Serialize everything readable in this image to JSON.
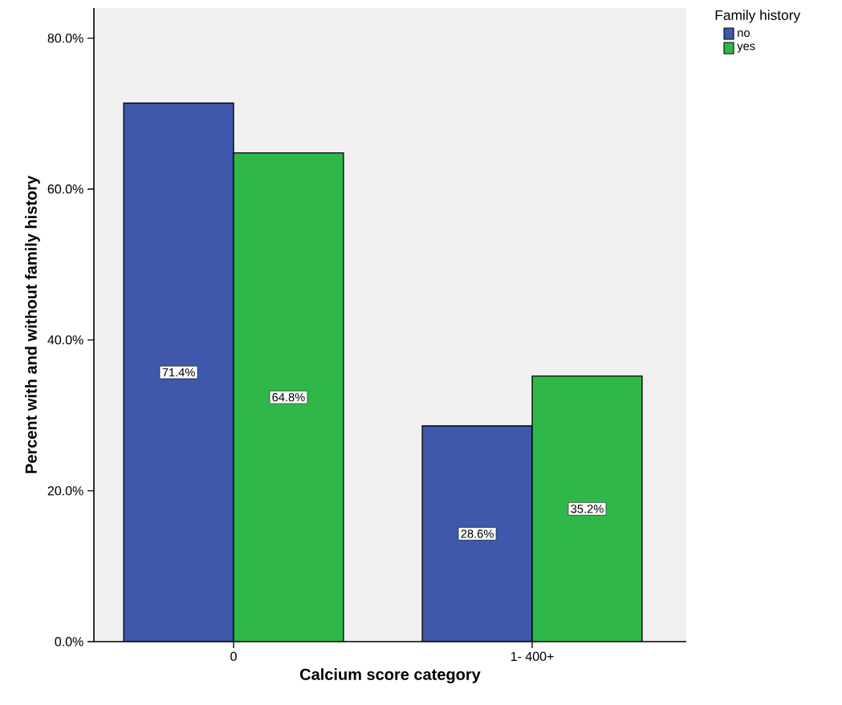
{
  "chart_data": {
    "type": "bar",
    "xlabel": "Calcium score category",
    "ylabel": "Percent with and without family history",
    "legend_title": "Family history",
    "categories": [
      "0",
      "1- 400+"
    ],
    "series": [
      {
        "name": "no",
        "color": "#3e58ac",
        "values": [
          71.4,
          28.6
        ],
        "value_labels": [
          "71.4%",
          "28.6%"
        ]
      },
      {
        "name": "yes",
        "color": "#2fb849",
        "values": [
          64.8,
          35.2
        ],
        "value_labels": [
          "64.8%",
          "35.2%"
        ]
      }
    ],
    "ylim": [
      0,
      84
    ],
    "yticks": [
      {
        "value": 0,
        "label": "0.0%"
      },
      {
        "value": 20,
        "label": "20.0%"
      },
      {
        "value": 40,
        "label": "40.0%"
      },
      {
        "value": 60,
        "label": "60.0%"
      },
      {
        "value": 80,
        "label": "80.0%"
      }
    ],
    "legend": "top right"
  }
}
